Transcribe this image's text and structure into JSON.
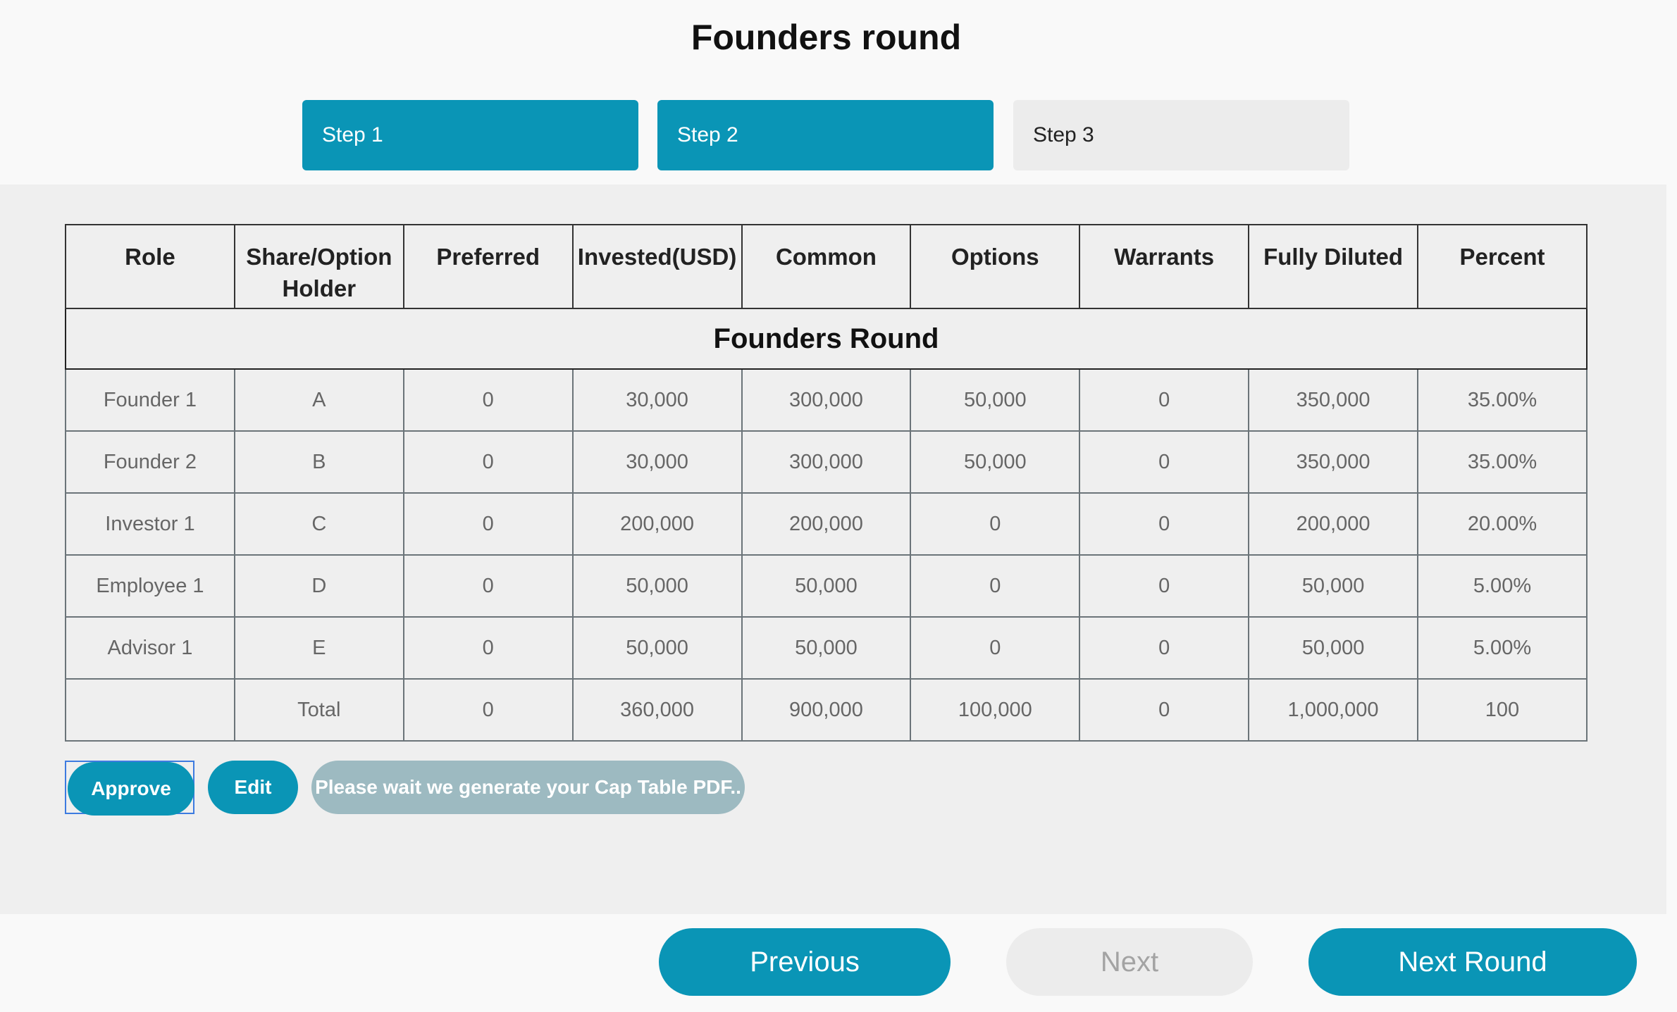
{
  "page": {
    "title": "Founders round"
  },
  "steps": [
    {
      "label": "Step 1",
      "state": "active"
    },
    {
      "label": "Step 2",
      "state": "active"
    },
    {
      "label": "Step 3",
      "state": "inactive"
    }
  ],
  "table": {
    "headers": [
      "Role",
      "Share/Option Holder",
      "Preferred",
      "Invested(USD)",
      "Common",
      "Options",
      "Warrants",
      "Fully Diluted",
      "Percent"
    ],
    "section_title": "Founders Round",
    "rows": [
      [
        "Founder 1",
        "A",
        "0",
        "30,000",
        "300,000",
        "50,000",
        "0",
        "350,000",
        "35.00%"
      ],
      [
        "Founder 2",
        "B",
        "0",
        "30,000",
        "300,000",
        "50,000",
        "0",
        "350,000",
        "35.00%"
      ],
      [
        "Investor 1",
        "C",
        "0",
        "200,000",
        "200,000",
        "0",
        "0",
        "200,000",
        "20.00%"
      ],
      [
        "Employee 1",
        "D",
        "0",
        "50,000",
        "50,000",
        "0",
        "0",
        "50,000",
        "5.00%"
      ],
      [
        "Advisor 1",
        "E",
        "0",
        "50,000",
        "50,000",
        "0",
        "0",
        "50,000",
        "5.00%"
      ],
      [
        "",
        "Total",
        "0",
        "360,000",
        "900,000",
        "100,000",
        "0",
        "1,000,000",
        "100"
      ]
    ]
  },
  "actions": {
    "approve_label": "Approve",
    "edit_label": "Edit",
    "pdf_status": "Please wait we generate your Cap Table PDF.."
  },
  "navigation": {
    "previous_label": "Previous",
    "next_label": "Next",
    "next_round_label": "Next Round"
  },
  "colors": {
    "accent": "#0a95b6",
    "disabled_button": "#9dbac1",
    "inactive_step": "#ececec",
    "panel_background": "#efefef"
  }
}
